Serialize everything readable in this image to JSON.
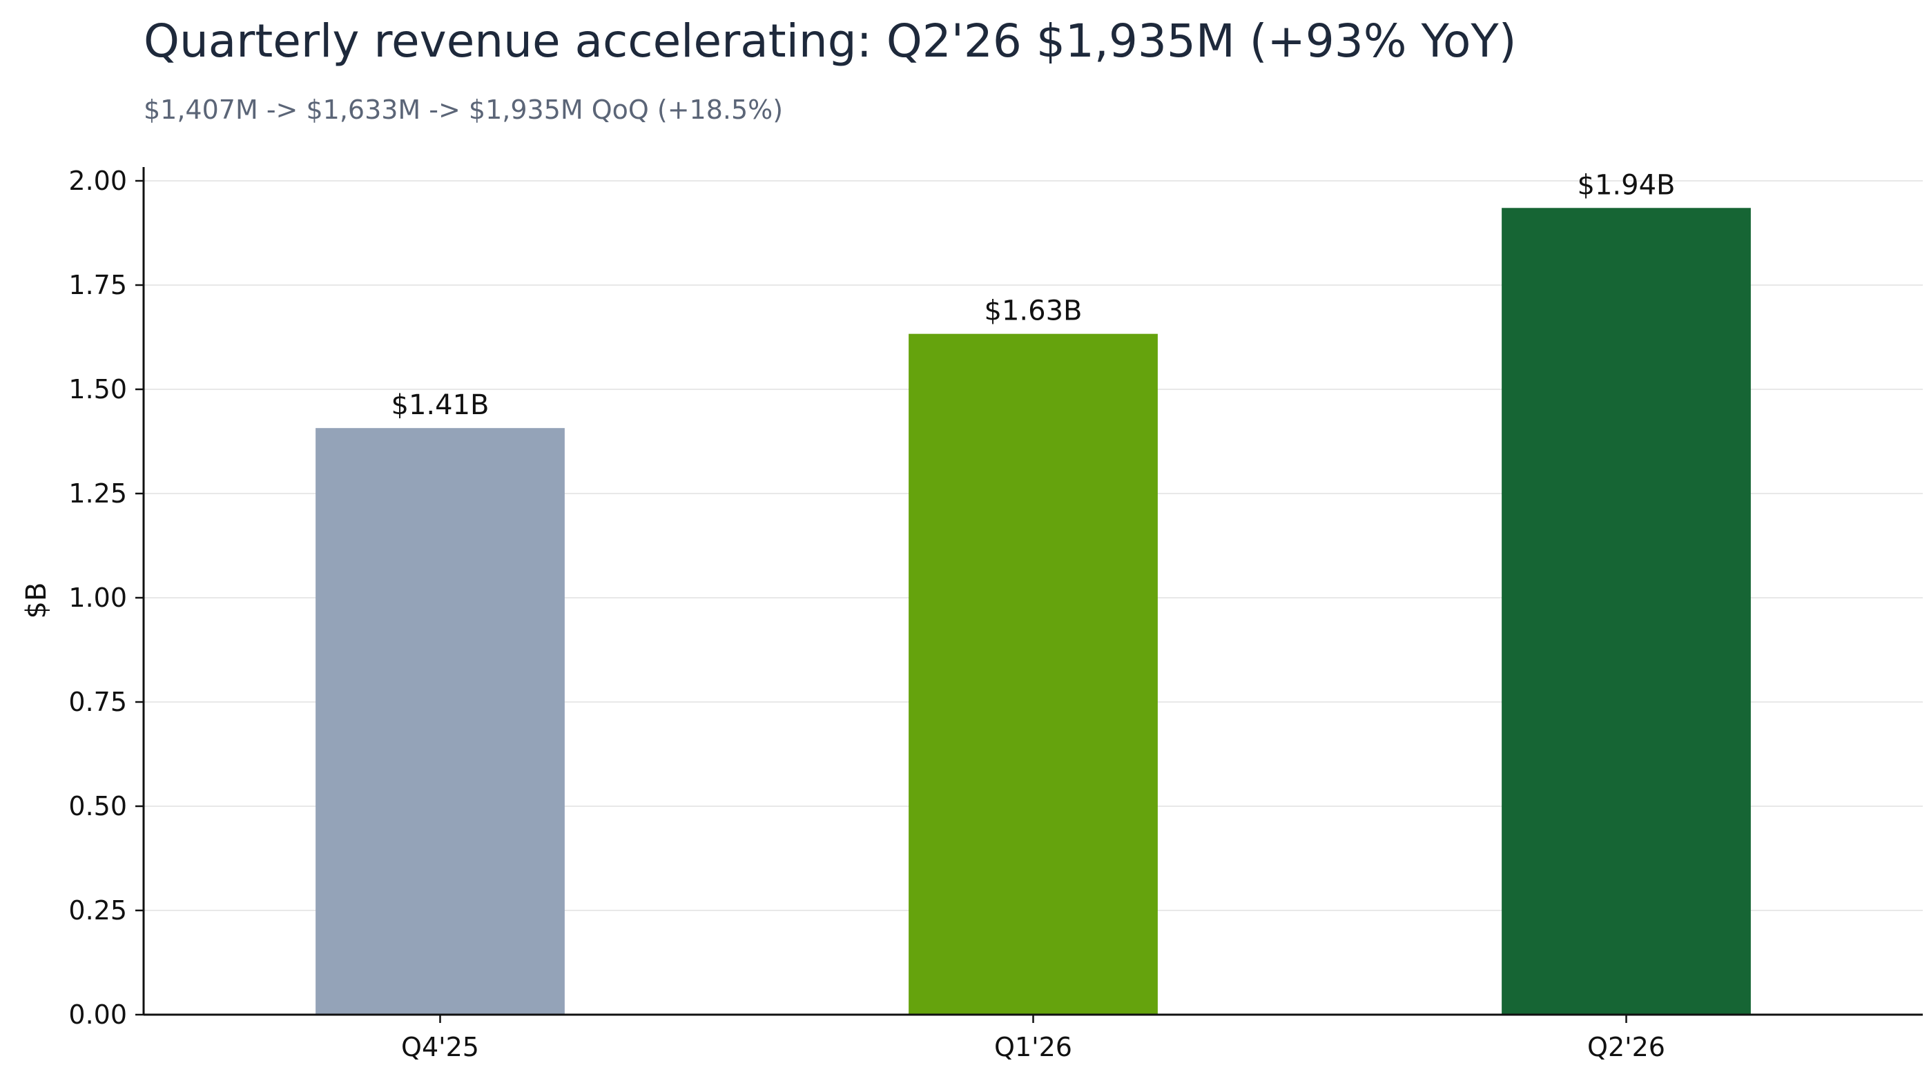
{
  "chart_data": {
    "type": "bar",
    "title": "Quarterly revenue accelerating: Q2'26 $1,935M (+93% YoY)",
    "subtitle": "$1,407M -> $1,633M -> $1,935M QoQ (+18.5%)",
    "xlabel": "",
    "ylabel": "$B",
    "categories": [
      "Q4'25",
      "Q1'26",
      "Q2'26"
    ],
    "values": [
      1.407,
      1.633,
      1.935
    ],
    "data_labels": [
      "$1.41B",
      "$1.63B",
      "$1.94B"
    ],
    "colors": [
      "#94a3b8",
      "#65a30d",
      "#166534"
    ],
    "ylim": [
      0,
      2.0
    ],
    "yticks": [
      "0.00",
      "0.25",
      "0.50",
      "0.75",
      "1.00",
      "1.25",
      "1.50",
      "1.75",
      "2.00"
    ],
    "grid": true,
    "legend": "none"
  }
}
